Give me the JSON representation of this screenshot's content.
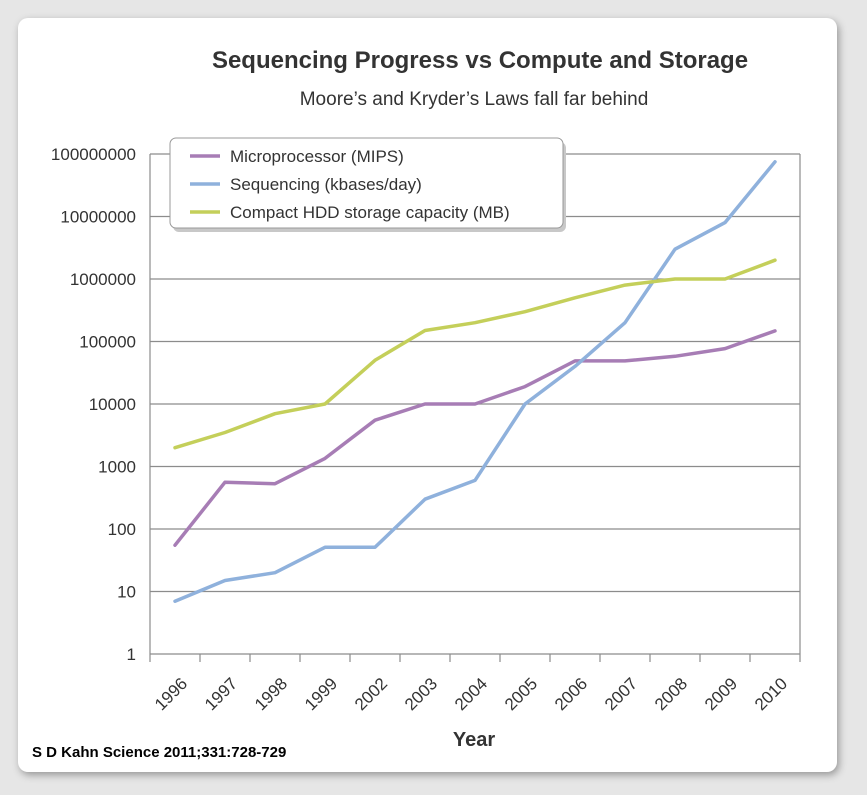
{
  "citation": "S D Kahn Science 2011;331:728-729",
  "chart_data": {
    "type": "line",
    "title": "Sequencing Progress vs Compute and Storage",
    "subtitle": "Moore’s and Kryder’s Laws fall far behind",
    "xlabel": "Year",
    "ylabel": "",
    "yscale": "log",
    "ylim": [
      1,
      100000000
    ],
    "yticks": [
      "1",
      "10",
      "100",
      "1000",
      "10000",
      "100000",
      "1000000",
      "10000000",
      "100000000"
    ],
    "categories": [
      "1996",
      "1997",
      "1998",
      "1999",
      "2002",
      "2003",
      "2004",
      "2005",
      "2006",
      "2007",
      "2008",
      "2009",
      "2010"
    ],
    "grid": "horizontal",
    "legend_position": "top-left",
    "series": [
      {
        "name": "Microprocessor (MIPS)",
        "color": "#a77db5",
        "values": [
          55,
          560,
          530,
          1350,
          5500,
          10000,
          10000,
          19000,
          49000,
          49000,
          58000,
          77000,
          148000
        ]
      },
      {
        "name": "Sequencing (kbases/day)",
        "color": "#8fb1dc",
        "values": [
          7,
          15,
          20,
          51,
          51,
          300,
          600,
          10000,
          40000,
          200000,
          3000000,
          8000000,
          75000000
        ]
      },
      {
        "name": "Compact HDD storage capacity (MB)",
        "color": "#c4cf5a",
        "values": [
          2000,
          3500,
          7000,
          10000,
          50000,
          150000,
          200000,
          300000,
          500000,
          800000,
          1000000,
          1000000,
          2000000
        ]
      }
    ]
  }
}
